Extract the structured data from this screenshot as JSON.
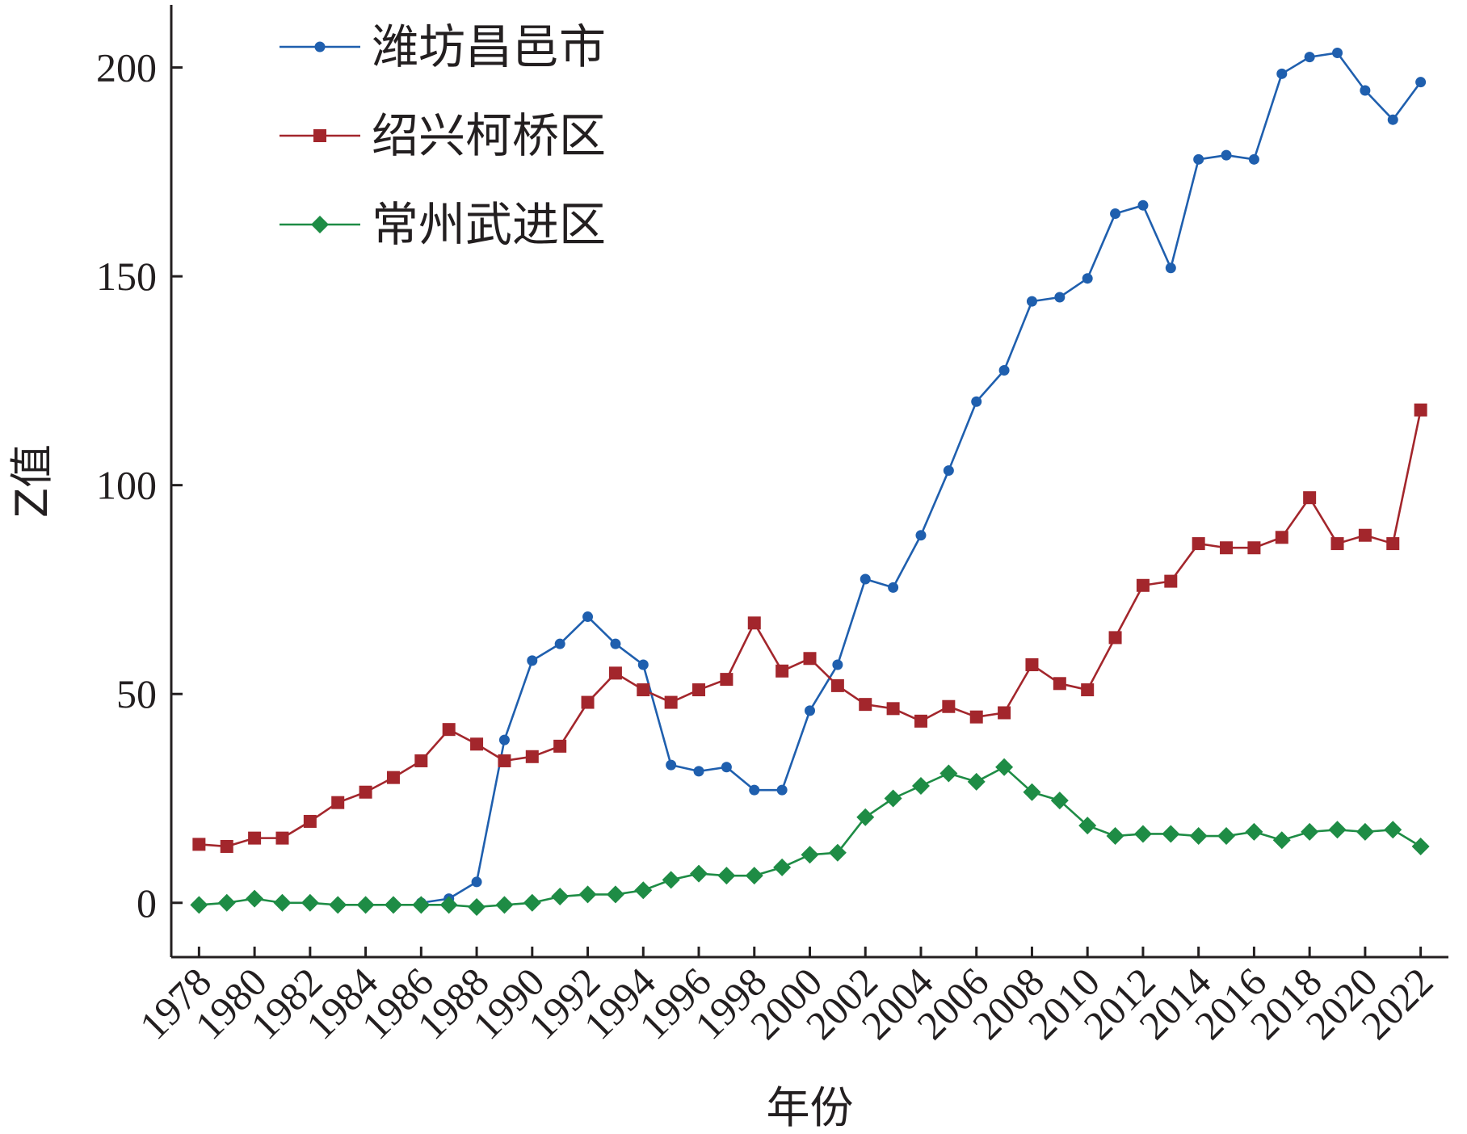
{
  "chart_data": {
    "type": "line",
    "title": "",
    "xlabel": "年份",
    "ylabel": "Z值",
    "xlim": [
      1977,
      2023
    ],
    "ylim": [
      -13,
      215
    ],
    "x_ticks": [
      1978,
      1980,
      1982,
      1984,
      1986,
      1988,
      1990,
      1992,
      1994,
      1996,
      1998,
      2000,
      2002,
      2004,
      2006,
      2008,
      2010,
      2012,
      2014,
      2016,
      2018,
      2020,
      2022
    ],
    "y_ticks": [
      0,
      50,
      100,
      150,
      200
    ],
    "grid": false,
    "legend_position": "top-left",
    "x": [
      1978,
      1979,
      1980,
      1981,
      1982,
      1983,
      1984,
      1985,
      1986,
      1987,
      1988,
      1989,
      1990,
      1991,
      1992,
      1993,
      1994,
      1995,
      1996,
      1997,
      1998,
      1999,
      2000,
      2001,
      2002,
      2003,
      2004,
      2005,
      2006,
      2007,
      2008,
      2009,
      2010,
      2011,
      2012,
      2013,
      2014,
      2015,
      2016,
      2017,
      2018,
      2019,
      2020,
      2021,
      2022
    ],
    "series": [
      {
        "name": "潍坊昌邑市",
        "color": "#1f5fae",
        "marker": "circle",
        "values": [
          null,
          null,
          null,
          null,
          null,
          null,
          null,
          null,
          0,
          1,
          5,
          39,
          58,
          62,
          68.5,
          62,
          57,
          33,
          31.5,
          32.5,
          27,
          27,
          46,
          57,
          77.5,
          75.5,
          88,
          103.5,
          120,
          127.5,
          144,
          145,
          149.5,
          165,
          167,
          152,
          178,
          179,
          178,
          198.5,
          202.5,
          203.5,
          194.5,
          187.5,
          196.5
        ]
      },
      {
        "name": "绍兴柯桥区",
        "color": "#a3262c",
        "marker": "square",
        "values": [
          14,
          13.5,
          15.5,
          15.5,
          19.5,
          24,
          26.5,
          30,
          34,
          41.5,
          38,
          34,
          35,
          37.5,
          48,
          55,
          51,
          48,
          51,
          53.5,
          67,
          55.5,
          58.5,
          52,
          47.5,
          46.5,
          43.5,
          47,
          44.5,
          45.5,
          57,
          52.5,
          51,
          63.5,
          76,
          77,
          86,
          85,
          85,
          87.5,
          97,
          86,
          88,
          86,
          118
        ]
      },
      {
        "name": "常州武进区",
        "color": "#1e8c45",
        "marker": "diamond",
        "values": [
          -0.5,
          0,
          1,
          0,
          0,
          -0.5,
          -0.5,
          -0.5,
          -0.5,
          -0.5,
          -1,
          -0.5,
          0,
          1.5,
          2,
          2,
          3,
          5.5,
          7,
          6.5,
          6.5,
          8.5,
          11.5,
          12,
          20.5,
          25,
          28,
          31,
          29,
          32.5,
          26.5,
          24.5,
          18.5,
          16,
          16.5,
          16.5,
          16,
          16,
          17,
          15,
          17,
          17.5,
          17,
          17.5,
          13.5
        ]
      }
    ]
  }
}
